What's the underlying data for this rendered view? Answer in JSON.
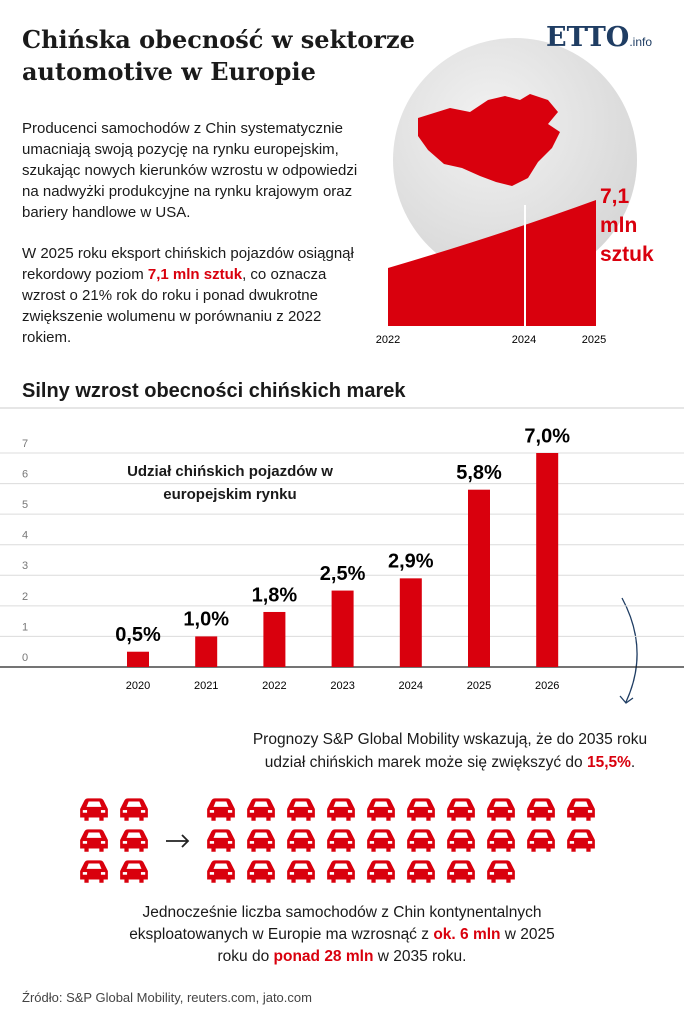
{
  "header": {
    "title": "Chińska obecność w sektorze automotive w Europie",
    "logo": "ETTO",
    "logo_suffix": ".info"
  },
  "intro": {
    "paragraph_1": "Producenci samochodów z Chin systematycznie umacniają swoją pozycję na rynku europejskim, szukając nowych kierunków wzrostu w odpowiedzi na nadwyżki produkcyjne na rynku krajowym oraz bariery handlowe w USA.",
    "paragraph_2": [
      "W 2025 roku eksport chińskich pojazdów osiągnął rekordowy poziom ",
      "7,1 mln sztuk",
      ", co oznacza wzrost o 21% rok do roku i ponad dwukrotne zwiększenie wolumenu w porównaniu z 2022 rokiem."
    ]
  },
  "export_graphic": {
    "label": "7,1 mln sztuk",
    "years": [
      "2022",
      "2024",
      "2025"
    ]
  },
  "section_title": "Silny wzrost obecności chińskich marek",
  "chart_data": {
    "type": "bar",
    "subtitle": "Udział chińskich pojazdów w europejskim rynku",
    "categories": [
      "2020",
      "2021",
      "2022",
      "2023",
      "2024",
      "2025",
      "2026"
    ],
    "values": [
      0.5,
      1.0,
      1.8,
      2.5,
      2.9,
      5.8,
      7.0
    ],
    "value_labels": [
      "0,5%",
      "1,0%",
      "1,8%",
      "2,5%",
      "2,9%",
      "5,8%",
      "7,0%"
    ],
    "color": "#d9000d",
    "ylim": [
      0,
      7
    ],
    "yticks": [
      0,
      1,
      2,
      3,
      4,
      5,
      6,
      7
    ],
    "grid": true
  },
  "forecast": [
    "Prognozy S&P Global Mobility wskazują, że do 2035 roku udział chińskich marek może się zwiększyć do ",
    "15,5%",
    "."
  ],
  "fleet": [
    "Jednocześnie liczba samochodów z Chin kontynentalnych eksploatowanych w Europie ma wzrosnąć z ",
    "ok. 6 mln",
    " w 2025 roku do ",
    "ponad 28 mln",
    " w 2035 roku."
  ],
  "source": "Źródło: S&P Global Mobility, reuters.com, jato.com"
}
